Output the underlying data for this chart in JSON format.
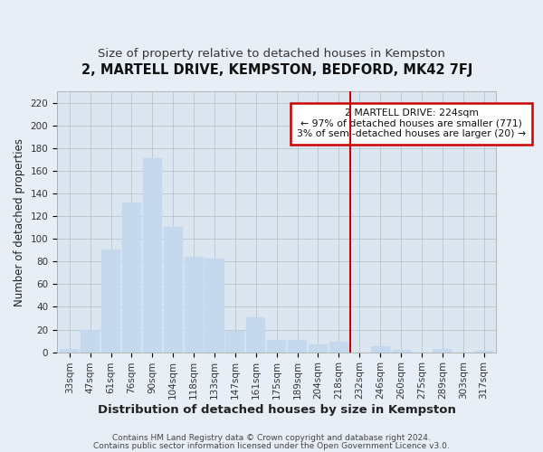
{
  "title": "2, MARTELL DRIVE, KEMPSTON, BEDFORD, MK42 7FJ",
  "subtitle": "Size of property relative to detached houses in Kempston",
  "xlabel": "Distribution of detached houses by size in Kempston",
  "ylabel": "Number of detached properties",
  "bar_labels": [
    "33sqm",
    "47sqm",
    "61sqm",
    "76sqm",
    "90sqm",
    "104sqm",
    "118sqm",
    "133sqm",
    "147sqm",
    "161sqm",
    "175sqm",
    "189sqm",
    "204sqm",
    "218sqm",
    "232sqm",
    "246sqm",
    "260sqm",
    "275sqm",
    "289sqm",
    "303sqm",
    "317sqm"
  ],
  "bar_values": [
    3,
    20,
    91,
    132,
    171,
    111,
    84,
    83,
    19,
    31,
    11,
    11,
    7,
    9,
    0,
    5,
    2,
    0,
    3,
    0,
    1
  ],
  "bar_color": "#c5d9ee",
  "bar_edge_color": "#c5d9ee",
  "background_color": "#e8eef5",
  "plot_bg_color": "#dce6f0",
  "grid_color": "#b0bec5",
  "vline_x": 13.57,
  "vline_color": "#cc0000",
  "annotation_text": "2 MARTELL DRIVE: 224sqm\n← 97% of detached houses are smaller (771)\n3% of semi-detached houses are larger (20) →",
  "annotation_box_color": "#ffffff",
  "annotation_box_edge": "#cc0000",
  "ylim": [
    0,
    230
  ],
  "yticks": [
    0,
    20,
    40,
    60,
    80,
    100,
    120,
    140,
    160,
    180,
    200,
    220
  ],
  "footer1": "Contains HM Land Registry data © Crown copyright and database right 2024.",
  "footer2": "Contains public sector information licensed under the Open Government Licence v3.0.",
  "title_fontsize": 10.5,
  "subtitle_fontsize": 9.5,
  "xlabel_fontsize": 9.5,
  "ylabel_fontsize": 8.5,
  "tick_fontsize": 7.5,
  "footer_fontsize": 6.5
}
